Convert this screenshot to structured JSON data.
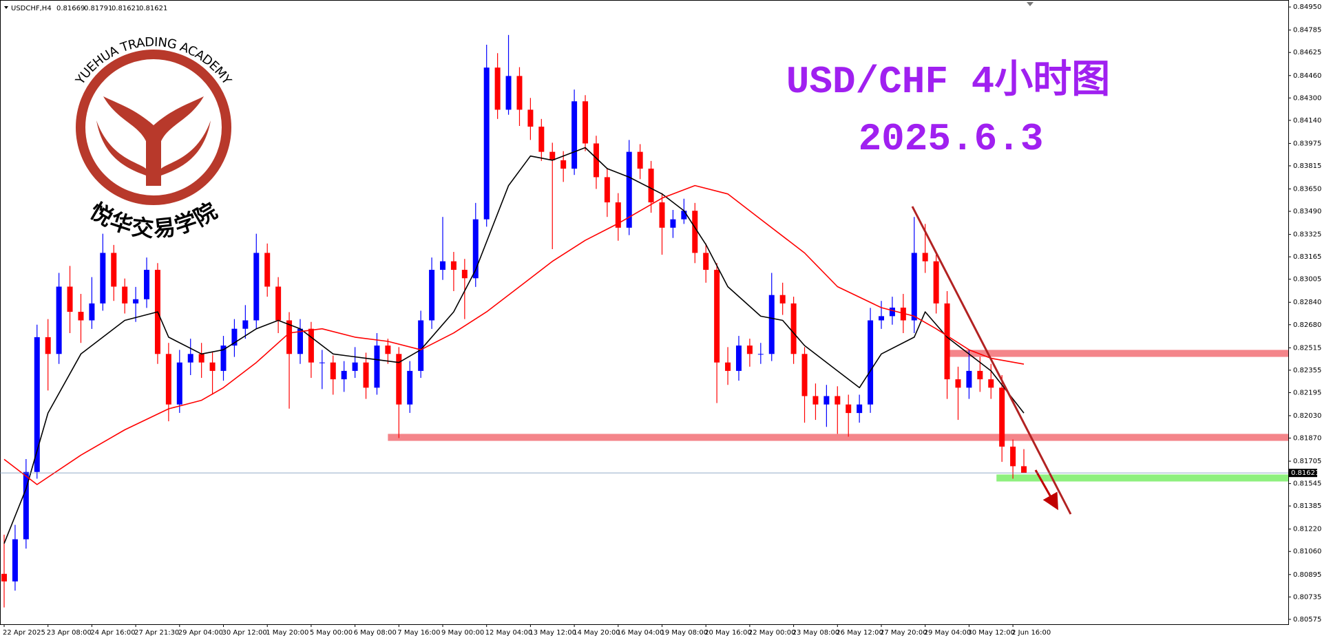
{
  "header": {
    "symbol": "USDCHF,H4"
  },
  "logo": {
    "arc_text": "YUEHUA TRADING ACADEMY",
    "name_cn": "悦华交易学院"
  },
  "chart_data": {
    "type": "candlestick",
    "title": "USD/CHF 4小时图",
    "subtitle": "2025.6.3",
    "up_color": "#0000ff",
    "down_color": "#ff0000",
    "categories": [
      "22 Apr 2025",
      null,
      null,
      null,
      "23 Apr 08:00",
      null,
      null,
      null,
      "24 Apr 16:00",
      null,
      null,
      null,
      "27 Apr 21:30",
      null,
      null,
      null,
      "29 Apr 04:00",
      null,
      null,
      null,
      "30 Apr 12:00",
      null,
      null,
      null,
      "1 May 20:00",
      null,
      null,
      null,
      "5 May 00:00",
      null,
      null,
      null,
      "6 May 08:00",
      null,
      null,
      null,
      "7 May 16:00",
      null,
      null,
      null,
      "9 May 00:00",
      null,
      null,
      null,
      "12 May 04:00",
      null,
      null,
      null,
      "13 May 12:00",
      null,
      null,
      null,
      "14 May 20:00",
      null,
      null,
      null,
      "16 May 04:00",
      null,
      null,
      null,
      "19 May 08:00",
      null,
      null,
      null,
      "20 May 16:00",
      null,
      null,
      null,
      "22 May 00:00",
      null,
      null,
      null,
      "23 May 08:00",
      null,
      null,
      null,
      "26 May 12:00",
      null,
      null,
      null,
      "27 May 20:00",
      null,
      null,
      null,
      "29 May 04:00",
      null,
      null,
      null,
      "30 May 12:00",
      null,
      null,
      null,
      "2 Jun 16:00",
      null
    ],
    "ohlc": [
      [
        0.809,
        0.8118,
        0.8066,
        0.80846
      ],
      [
        0.80846,
        0.8125,
        0.8078,
        0.81147
      ],
      [
        0.81147,
        0.8172,
        0.8108,
        0.81628
      ],
      [
        0.81628,
        0.8268,
        0.8158,
        0.82591
      ],
      [
        0.82591,
        0.8272,
        0.8221,
        0.82471
      ],
      [
        0.82471,
        0.8305,
        0.824,
        0.82952
      ],
      [
        0.82952,
        0.831,
        0.8262,
        0.82772
      ],
      [
        0.82772,
        0.829,
        0.8255,
        0.82711
      ],
      [
        0.82711,
        0.8302,
        0.8265,
        0.82832
      ],
      [
        0.82832,
        0.8333,
        0.8278,
        0.83193
      ],
      [
        0.83193,
        0.8325,
        0.8285,
        0.82952
      ],
      [
        0.82952,
        0.8301,
        0.8276,
        0.82832
      ],
      [
        0.82832,
        0.8295,
        0.827,
        0.82862
      ],
      [
        0.82862,
        0.8316,
        0.828,
        0.83072
      ],
      [
        0.83072,
        0.8312,
        0.824,
        0.82471
      ],
      [
        0.82471,
        0.8255,
        0.8199,
        0.8211
      ],
      [
        0.8211,
        0.825,
        0.8205,
        0.8241
      ],
      [
        0.8241,
        0.8258,
        0.8232,
        0.82471
      ],
      [
        0.82471,
        0.8255,
        0.823,
        0.8241
      ],
      [
        0.8241,
        0.8249,
        0.8218,
        0.8235
      ],
      [
        0.8235,
        0.826,
        0.8228,
        0.82531
      ],
      [
        0.82531,
        0.8272,
        0.8245,
        0.82651
      ],
      [
        0.82651,
        0.8282,
        0.8258,
        0.82711
      ],
      [
        0.82711,
        0.8333,
        0.8265,
        0.83193
      ],
      [
        0.83193,
        0.8326,
        0.8288,
        0.82952
      ],
      [
        0.82952,
        0.8302,
        0.8262,
        0.82711
      ],
      [
        0.82711,
        0.8277,
        0.8208,
        0.82471
      ],
      [
        0.82471,
        0.8272,
        0.824,
        0.82651
      ],
      [
        0.82651,
        0.827,
        0.823,
        0.8241
      ],
      [
        0.8241,
        0.825,
        0.8222,
        0.8241
      ],
      [
        0.8241,
        0.8246,
        0.8218,
        0.8229
      ],
      [
        0.8229,
        0.8242,
        0.822,
        0.8235
      ],
      [
        0.8235,
        0.8252,
        0.823,
        0.8241
      ],
      [
        0.8241,
        0.8248,
        0.8215,
        0.8223
      ],
      [
        0.8223,
        0.8262,
        0.8218,
        0.82531
      ],
      [
        0.82531,
        0.8258,
        0.824,
        0.82471
      ],
      [
        0.82471,
        0.8252,
        0.8187,
        0.8211
      ],
      [
        0.8211,
        0.8242,
        0.8205,
        0.8235
      ],
      [
        0.8235,
        0.8278,
        0.823,
        0.82711
      ],
      [
        0.82711,
        0.8316,
        0.8265,
        0.83072
      ],
      [
        0.83072,
        0.8345,
        0.83,
        0.83133
      ],
      [
        0.83133,
        0.832,
        0.8292,
        0.83072
      ],
      [
        0.83072,
        0.8315,
        0.8272,
        0.83012
      ],
      [
        0.83012,
        0.8355,
        0.8295,
        0.83433
      ],
      [
        0.83433,
        0.8468,
        0.8338,
        0.84517
      ],
      [
        0.84517,
        0.8462,
        0.8415,
        0.84216
      ],
      [
        0.84216,
        0.8475,
        0.8418,
        0.84457
      ],
      [
        0.84457,
        0.8452,
        0.841,
        0.84216
      ],
      [
        0.84216,
        0.843,
        0.84,
        0.84095
      ],
      [
        0.84095,
        0.8415,
        0.8385,
        0.83915
      ],
      [
        0.83915,
        0.8398,
        0.8322,
        0.83855
      ],
      [
        0.83855,
        0.8392,
        0.837,
        0.83795
      ],
      [
        0.83795,
        0.8436,
        0.8375,
        0.84276
      ],
      [
        0.84276,
        0.8432,
        0.8392,
        0.83975
      ],
      [
        0.83975,
        0.8403,
        0.8365,
        0.83734
      ],
      [
        0.83734,
        0.838,
        0.8345,
        0.83554
      ],
      [
        0.83554,
        0.8362,
        0.8328,
        0.83373
      ],
      [
        0.83373,
        0.84,
        0.8332,
        0.83915
      ],
      [
        0.83915,
        0.8397,
        0.8372,
        0.83795
      ],
      [
        0.83795,
        0.8385,
        0.8348,
        0.83554
      ],
      [
        0.83554,
        0.8362,
        0.8318,
        0.83373
      ],
      [
        0.83373,
        0.835,
        0.833,
        0.83433
      ],
      [
        0.83433,
        0.8358,
        0.834,
        0.83494
      ],
      [
        0.83494,
        0.8355,
        0.8312,
        0.83193
      ],
      [
        0.83193,
        0.8326,
        0.8298,
        0.83072
      ],
      [
        0.83072,
        0.8312,
        0.8212,
        0.8241
      ],
      [
        0.8241,
        0.8252,
        0.8225,
        0.8235
      ],
      [
        0.8235,
        0.826,
        0.8228,
        0.82531
      ],
      [
        0.82531,
        0.8258,
        0.8238,
        0.82471
      ],
      [
        0.82471,
        0.8255,
        0.824,
        0.82471
      ],
      [
        0.82471,
        0.8305,
        0.8242,
        0.82892
      ],
      [
        0.82892,
        0.8298,
        0.8275,
        0.82832
      ],
      [
        0.82832,
        0.8288,
        0.824,
        0.82471
      ],
      [
        0.82471,
        0.8252,
        0.8198,
        0.8217
      ],
      [
        0.8217,
        0.8226,
        0.82,
        0.8211
      ],
      [
        0.8211,
        0.8225,
        0.8195,
        0.8217
      ],
      [
        0.8217,
        0.8224,
        0.819,
        0.8211
      ],
      [
        0.8211,
        0.8218,
        0.8188,
        0.82049
      ],
      [
        0.82049,
        0.8218,
        0.8198,
        0.8211
      ],
      [
        0.8211,
        0.828,
        0.8205,
        0.82711
      ],
      [
        0.82711,
        0.8285,
        0.8265,
        0.82741
      ],
      [
        0.82741,
        0.8288,
        0.8268,
        0.82802
      ],
      [
        0.82802,
        0.829,
        0.8262,
        0.82711
      ],
      [
        0.82711,
        0.8345,
        0.8262,
        0.83193
      ],
      [
        0.83193,
        0.834,
        0.8305,
        0.83133
      ],
      [
        0.83133,
        0.8318,
        0.8276,
        0.82832
      ],
      [
        0.82832,
        0.8292,
        0.8215,
        0.8229
      ],
      [
        0.8229,
        0.8238,
        0.82,
        0.8223
      ],
      [
        0.8223,
        0.825,
        0.8215,
        0.8235
      ],
      [
        0.8235,
        0.8245,
        0.822,
        0.8229
      ],
      [
        0.8229,
        0.824,
        0.8215,
        0.8223
      ],
      [
        0.8223,
        0.8232,
        0.817,
        0.81809
      ],
      [
        0.81809,
        0.8186,
        0.8158,
        0.81669
      ],
      [
        0.81669,
        0.81791,
        0.81621,
        0.81621
      ]
    ],
    "lines": [
      {
        "color": "#000000",
        "x": [
          0,
          2,
          4,
          7,
          11,
          14,
          15,
          18,
          20,
          23,
          25,
          27,
          30,
          33,
          36,
          38,
          41,
          43,
          46,
          48,
          50,
          53,
          55,
          57,
          60,
          62,
          64,
          66,
          69,
          71,
          73,
          76,
          78,
          80,
          83,
          84,
          86,
          90,
          93
        ],
        "values": [
          0.81117,
          0.81508,
          0.82049,
          0.82471,
          0.82711,
          0.82772,
          0.82591,
          0.82471,
          0.82501,
          0.82651,
          0.82711,
          0.82651,
          0.82471,
          0.8244,
          0.8241,
          0.82501,
          0.82772,
          0.83072,
          0.83674,
          0.83885,
          0.83855,
          0.83945,
          0.83795,
          0.83734,
          0.83614,
          0.83494,
          0.83253,
          0.82952,
          0.82741,
          0.82711,
          0.82531,
          0.8235,
          0.8223,
          0.82471,
          0.82591,
          0.82772,
          0.82591,
          0.8235,
          0.82049
        ]
      },
      {
        "color": "#ff0000",
        "x": [
          0,
          3,
          7,
          11,
          15,
          18,
          20,
          23,
          26,
          29,
          32,
          35,
          38,
          41,
          44,
          47,
          50,
          53,
          56,
          60,
          63,
          66,
          69,
          73,
          76,
          80,
          83,
          85,
          88,
          90,
          93
        ],
        "values": [
          0.81718,
          0.81538,
          0.81748,
          0.81929,
          0.82079,
          0.8214,
          0.8223,
          0.8241,
          0.82621,
          0.82651,
          0.82591,
          0.82561,
          0.82501,
          0.82621,
          0.82772,
          0.82952,
          0.83133,
          0.83283,
          0.83403,
          0.83584,
          0.83674,
          0.83614,
          0.83433,
          0.83193,
          0.82952,
          0.82802,
          0.82741,
          0.82651,
          0.82501,
          0.8244,
          0.82398
        ]
      }
    ],
    "zones": [
      {
        "low": 0.8185,
        "high": 0.819,
        "start": 35,
        "color": "#f4858a"
      },
      {
        "low": 0.8245,
        "high": 0.825,
        "start": 86,
        "color": "#f4858a"
      },
      {
        "low": 0.8156,
        "high": 0.8161,
        "start": 90.5,
        "color": "#8ef07e"
      }
    ],
    "ylim": [
      0.8054,
      0.8499
    ],
    "yticks": [
      {
        "value": 0.8495,
        "label": "0.84950"
      },
      0.84785,
      0.84625,
      {
        "value": 0.8446,
        "label": "0.84460"
      },
      {
        "value": 0.843,
        "label": "0.84300"
      },
      {
        "value": 0.8414,
        "label": "0.84140"
      },
      0.83975,
      0.83815,
      {
        "value": 0.8365,
        "label": "0.83650"
      },
      {
        "value": 0.8349,
        "label": "0.83490"
      },
      0.83325,
      0.83165,
      0.83005,
      {
        "value": 0.8284,
        "label": "0.82840"
      },
      {
        "value": 0.8268,
        "label": "0.82680"
      },
      0.82515,
      0.82355,
      0.82195,
      {
        "value": 0.8203,
        "label": "0.82030"
      },
      {
        "value": 0.8187,
        "label": "0.81870"
      },
      0.81705,
      0.81545,
      0.81385,
      {
        "value": 0.8122,
        "label": "0.81220"
      },
      {
        "value": 0.8106,
        "label": "0.81060"
      },
      0.80895,
      0.80735,
      0.80575
    ]
  }
}
